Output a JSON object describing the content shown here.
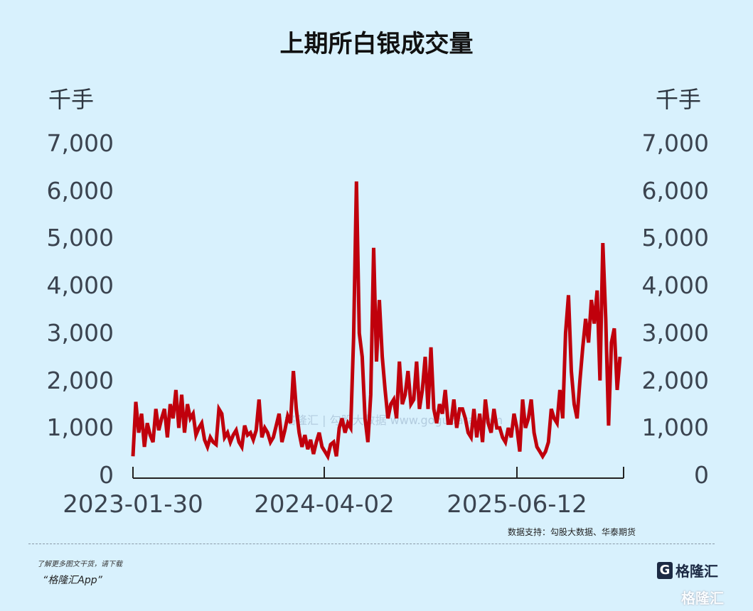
{
  "title": "上期所白银成交量",
  "unit_left": "千手",
  "unit_right": "千手",
  "source": "数据支持：勾股大数据、华泰期货",
  "promo_line1": "了解更多图文干货，请下载",
  "promo_line2": "“格隆汇App”",
  "logo_text": "格隆汇",
  "logo_glyph": "G",
  "watermark": "格隆汇",
  "chart_watermark": "格隆汇 | 勾股大数据 www.gogudata.com",
  "colors": {
    "line": "#c0000c",
    "background": "#d8f1fd",
    "axis": "#222222"
  },
  "chart_data": {
    "type": "line",
    "title": "上期所白银成交量",
    "xlabel": "",
    "ylabel": "千手",
    "ylim": [
      0,
      7000
    ],
    "yticks": [
      "0",
      "1,000",
      "2,000",
      "3,000",
      "4,000",
      "5,000",
      "6,000",
      "7,000"
    ],
    "xticks": [
      "2023-01-30",
      "2024-04-02",
      "2025-06-12"
    ],
    "grid": false,
    "dual_axis": true,
    "series": [
      {
        "name": "上期所白银成交量",
        "values": [
          400,
          1550,
          900,
          1300,
          600,
          1100,
          850,
          700,
          1400,
          950,
          1200,
          1400,
          800,
          1500,
          1200,
          1800,
          1000,
          1700,
          900,
          1500,
          1200,
          1300,
          850,
          1000,
          1100,
          750,
          600,
          800,
          700,
          650,
          1400,
          1300,
          800,
          900,
          700,
          850,
          950,
          700,
          600,
          1050,
          850,
          900,
          750,
          950,
          1600,
          800,
          1000,
          900,
          700,
          800,
          1050,
          1300,
          700,
          950,
          1250,
          1100,
          2200,
          1400,
          900,
          600,
          850,
          550,
          750,
          450,
          700,
          900,
          600,
          500,
          400,
          650,
          700,
          400,
          1000,
          1200,
          900,
          1100,
          1000,
          2900,
          6200,
          3000,
          2500,
          1200,
          700,
          1700,
          4800,
          2400,
          3700,
          2500,
          1800,
          1200,
          1500,
          1600,
          1200,
          2400,
          1500,
          1700,
          2200,
          1500,
          1600,
          2400,
          1400,
          1800,
          2500,
          1400,
          2700,
          1400,
          1100,
          1500,
          1300,
          1800,
          1100,
          1100,
          1600,
          1000,
          1400,
          1400,
          1200,
          900,
          800,
          1400,
          800,
          1300,
          700,
          1600,
          1100,
          900,
          1400,
          1000,
          1000,
          800,
          700,
          1000,
          800,
          1300,
          1000,
          500,
          1600,
          1000,
          1200,
          1600,
          900,
          600,
          500,
          400,
          500,
          700,
          1400,
          1200,
          1100,
          1800,
          1200,
          3000,
          3800,
          2200,
          1500,
          1200,
          2000,
          2700,
          3300,
          2800,
          3700,
          3200,
          3900,
          2000,
          4900,
          3300,
          1050,
          2800,
          3100,
          1800,
          2500
        ]
      }
    ]
  }
}
